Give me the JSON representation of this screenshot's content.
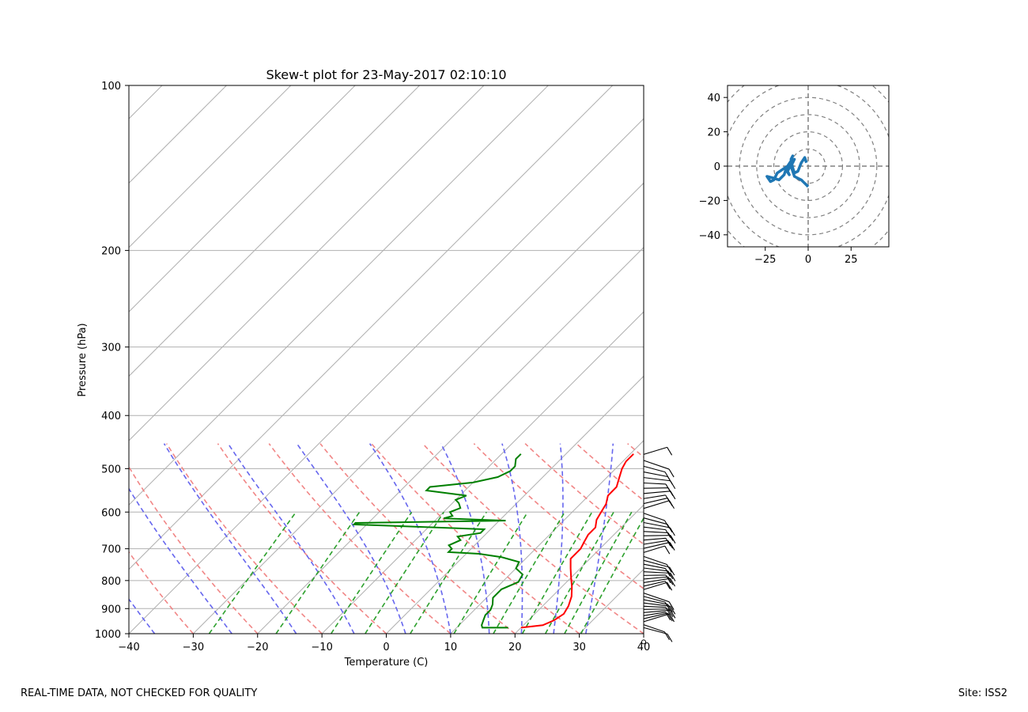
{
  "footer": {
    "left": "REAL-TIME DATA, NOT CHECKED FOR QUALITY",
    "right": "Site: ISS2"
  },
  "chart_data": [
    {
      "type": "line",
      "subtype": "skew-t",
      "title": "Skew-t plot for 23-May-2017 02:10:10",
      "xlabel": "Temperature (C)",
      "ylabel": "Pressure (hPa)",
      "xlim": [
        -40,
        40
      ],
      "ylim": [
        1000,
        100
      ],
      "yscale": "log",
      "xticks": [
        -40,
        -30,
        -20,
        -10,
        0,
        10,
        20,
        30,
        40
      ],
      "yticks": [
        1000,
        900,
        800,
        700,
        600,
        500,
        400,
        300,
        200,
        100
      ],
      "grid": true,
      "colors": {
        "temperature": "#ff0000",
        "dewpoint": "#008000",
        "dry_adiabats": "#f08080",
        "moist_adiabats": "#6666ee",
        "mixing_ratio": "#2ca02c",
        "isotherms": "#b0b0b0",
        "hodograph": "#1f77b4"
      },
      "series": [
        {
          "role": "temperature",
          "pressure": [
            975,
            965,
            945,
            920,
            890,
            855,
            820,
            790,
            760,
            730,
            700,
            680,
            660,
            640,
            620,
            600,
            580,
            560,
            540,
            520,
            500,
            485,
            470
          ],
          "values": [
            20,
            23,
            24,
            24.5,
            24,
            23,
            21.5,
            20,
            18.5,
            17,
            17,
            16.5,
            16,
            16,
            15,
            14.5,
            14,
            13,
            13,
            12,
            11,
            10.5,
            10.5
          ]
        },
        {
          "role": "dewpoint",
          "pressure": [
            975,
            975,
            965,
            945,
            925,
            905,
            885,
            860,
            830,
            805,
            780,
            760,
            740,
            725,
            715,
            710,
            700,
            690,
            675,
            665,
            655,
            645,
            632,
            628,
            622,
            616,
            610,
            600,
            590,
            578,
            570,
            560,
            548,
            540,
            530,
            518,
            505,
            495,
            480,
            470
          ],
          "values": [
            18,
            14,
            13.5,
            13,
            12.5,
            12.5,
            12,
            11,
            11,
            12.5,
            12,
            10,
            9.5,
            6,
            2,
            -3,
            -3,
            -4,
            -3,
            -4,
            -1,
            -1,
            -22,
            -22,
            1,
            -9,
            -8,
            -9,
            -8,
            -9,
            -10,
            -9,
            -16,
            -16,
            -10,
            -7,
            -6,
            -6,
            -7,
            -7
          ]
        }
      ],
      "wind_barbs": {
        "pressure_range": [
          975,
          470
        ]
      }
    },
    {
      "type": "line",
      "subtype": "hodograph",
      "xlim": [
        -47,
        47
      ],
      "ylim": [
        -47,
        47
      ],
      "xticks": [
        -25,
        0,
        25
      ],
      "yticks": [
        40,
        20,
        0,
        -20,
        -40
      ],
      "rings": [
        10,
        20,
        30,
        40,
        50,
        60
      ],
      "series": [
        {
          "u": [
            0,
            -2,
            -4,
            -8,
            -10,
            -9,
            -12,
            -11,
            -13,
            -9,
            -8,
            -12,
            -15,
            -18,
            -20,
            -22,
            -24,
            -20,
            -17,
            -14,
            -13,
            -12,
            -10,
            -9,
            -10,
            -9,
            -8,
            -6,
            -4,
            -2,
            -1
          ],
          "v": [
            -12,
            -10,
            -8,
            -6,
            0,
            3,
            -3,
            -5,
            -2,
            2,
            4,
            0,
            -2,
            -4,
            -8,
            -9,
            -6,
            -7,
            -8,
            -5,
            -2,
            0,
            3,
            6,
            4,
            -1,
            -4,
            -3,
            2,
            5,
            2
          ]
        }
      ]
    }
  ]
}
